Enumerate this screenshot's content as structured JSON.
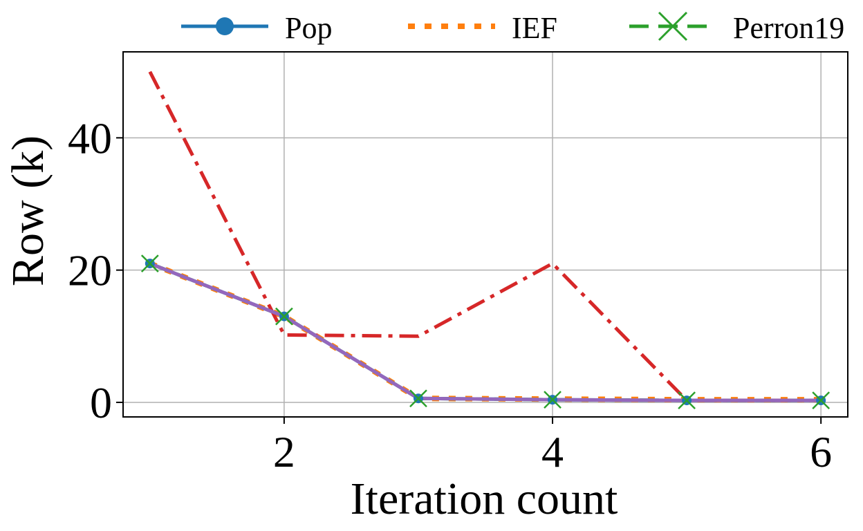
{
  "chart_data": {
    "type": "line",
    "xlabel": "Iteration count",
    "ylabel": "Row (k)",
    "xlim": [
      0.8,
      6.2
    ],
    "ylim": [
      -2.2,
      53
    ],
    "xticks": [
      2,
      4,
      6
    ],
    "yticks": [
      0,
      20,
      40
    ],
    "grid": true,
    "legend_position": "top",
    "x": [
      1,
      2,
      3,
      4,
      5,
      6
    ],
    "series": [
      {
        "name": "Pop",
        "color": "#1f77b4",
        "style": "solid",
        "marker": "circle",
        "values": [
          21,
          13,
          0.6,
          0.4,
          0.3,
          0.3
        ],
        "show_markers": true
      },
      {
        "name": "IEF",
        "color": "#ff7f0e",
        "style": "dotted",
        "marker": "none",
        "values": [
          21,
          13,
          0.6,
          0.5,
          0.4,
          0.4
        ]
      },
      {
        "name": "Perron19",
        "color": "#2ca02c",
        "style": "dashed",
        "marker": "x",
        "values": [
          21,
          13,
          0.6,
          0.4,
          0.3,
          0.3
        ],
        "show_markers": true
      },
      {
        "color": "#d62728",
        "style": "dashdot",
        "marker": "none",
        "values": [
          50,
          10.2,
          10,
          21,
          0.3,
          0.3
        ]
      },
      {
        "color": "#9467bd",
        "style": "solid",
        "marker": "none",
        "values": [
          21,
          13,
          0.6,
          0.4,
          0.3,
          0.3
        ]
      }
    ]
  }
}
